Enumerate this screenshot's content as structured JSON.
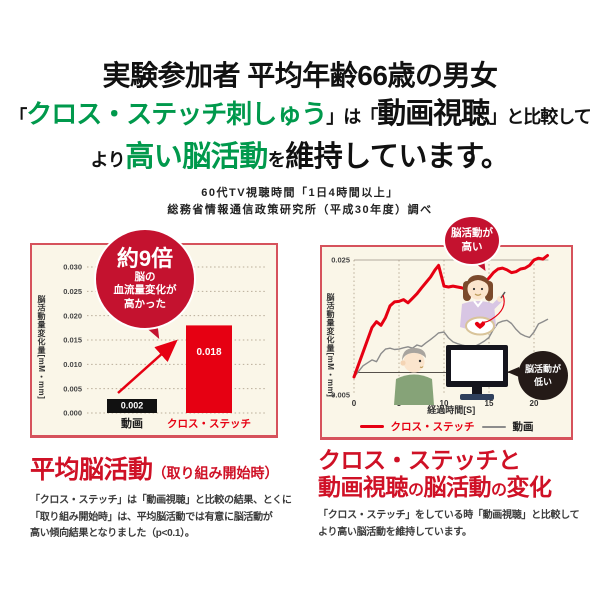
{
  "colors": {
    "bar_red": "#e60012",
    "bubble_red": "#c4122f",
    "text_red": "#cf1126",
    "green": "#00994c",
    "panel_border": "#d6525c",
    "panel_bg": "#faf6e8",
    "gray_line": "#8c8c8c",
    "black": "#111111",
    "bubble_dark": "#241a17"
  },
  "header": {
    "line1": "実験参加者 平均年齢66歳の男女",
    "line2_segments": [
      {
        "text": "「",
        "style": "mid"
      },
      {
        "text": "クロス・ステッチ刺しゅう",
        "style": "green"
      },
      {
        "text": "」は「",
        "style": "mid"
      },
      {
        "text": "動画視聴",
        "style": "big"
      },
      {
        "text": "」と比較して",
        "style": "mid"
      }
    ],
    "line3_segments": [
      {
        "text": "より",
        "style": "mid"
      },
      {
        "text": "高い脳活動",
        "style": "green-big"
      },
      {
        "text": "を",
        "style": "mid"
      },
      {
        "text": "維持しています。",
        "style": "big"
      }
    ],
    "source_line1": "60代TV視聴時間「1日4時間以上」",
    "source_line2": "総務省情報通信政策研究所（平成30年度）調べ"
  },
  "left_panel": {
    "bubble": {
      "big": "約9倍",
      "line1": "脳の",
      "line2": "血流量変化が",
      "line3": "高かった"
    }
  },
  "right_panel": {
    "bubble_high_line1": "脳活動が",
    "bubble_high_line2": "高い",
    "bubble_low_line1": "脳活動が",
    "bubble_low_line2": "低い"
  },
  "chart_data": [
    {
      "type": "bar",
      "title": "平均脳活動（取り組み開始時）",
      "categories": [
        "動画",
        "クロス・ステッチ"
      ],
      "values": [
        0.002,
        0.018
      ],
      "bar_colors": [
        "#111111",
        "#e60012"
      ],
      "ylabel": "脳活動量変化量[mM・mm]",
      "yticks": [
        0.0,
        0.005,
        0.01,
        0.015,
        0.02,
        0.025,
        0.03
      ],
      "ylim": [
        0,
        0.03
      ],
      "grid": "dotted",
      "annotation": "約9倍 脳の血流量変化が高かった"
    },
    {
      "type": "line",
      "title": "クロス・ステッチと動画視聴の脳活動の変化",
      "xlabel": "経過時間[S]",
      "ylabel": "脳活動量変化量[mM・mm]",
      "xticks": [
        0,
        5,
        10,
        15,
        20
      ],
      "ylim": [
        -0.005,
        0.025
      ],
      "ytick_labels": [
        "0.025",
        "-0.005"
      ],
      "grid": "dotted-vertical",
      "legend_position": "bottom",
      "x": [
        0,
        1,
        2,
        2.5,
        3,
        3.5,
        4,
        4.5,
        5,
        5.5,
        6,
        6.5,
        7,
        7.5,
        8,
        8.5,
        9,
        9.4,
        10,
        10.5,
        11,
        11.5,
        12,
        12.5,
        13,
        13.5,
        14,
        14.5,
        15,
        15.5,
        16,
        16.5,
        17,
        17.5,
        18,
        18.5,
        19,
        19.5,
        20,
        20.5,
        21,
        21.5
      ],
      "series": [
        {
          "name": "クロス・ステッチ",
          "color": "#e60012",
          "values": [
            -0.001,
            0.0045,
            0.01,
            0.0113,
            0.0105,
            0.0122,
            0.0148,
            0.0157,
            0.0158,
            0.0162,
            0.0155,
            0.0165,
            0.0175,
            0.0188,
            0.02,
            0.0212,
            0.0228,
            0.0238,
            0.0192,
            0.019,
            0.0192,
            0.019,
            0.0188,
            0.0185,
            0.0183,
            0.018,
            0.019,
            0.02,
            0.021,
            0.0222,
            0.023,
            0.0232,
            0.0228,
            0.0222,
            0.0224,
            0.023,
            0.0232,
            0.0238,
            0.025,
            0.0254,
            0.0252,
            0.026
          ]
        },
        {
          "name": "動画",
          "color": "#8c8c8c",
          "values": [
            -0.001,
            0.0015,
            0.0028,
            0.0024,
            0.0042,
            0.0052,
            0.0054,
            0.0051,
            0.0052,
            0.0055,
            0.0057,
            0.0054,
            0.0061,
            0.0058,
            0.0066,
            0.0073,
            0.0081,
            0.0088,
            0.009,
            0.0077,
            0.0068,
            0.0064,
            0.0061,
            0.0059,
            0.0057,
            0.0059,
            0.0064,
            0.007,
            0.0078,
            0.0096,
            0.011,
            0.0114,
            0.0116,
            0.0109,
            0.0096,
            0.0086,
            0.0081,
            0.0078,
            0.009,
            0.0108,
            0.0113,
            0.0118
          ]
        }
      ]
    }
  ],
  "bottom_left": {
    "title_main": "平均脳活動",
    "title_sub": "（取り組み開始時）",
    "body_lines": [
      "「クロス・ステッチ」は「動画視聴」と比較の結果、とくに",
      "「取り組み開始時」は、平均脳活動では有意に脳活動が",
      "高い傾向結果となりました（p<0.1）。"
    ]
  },
  "bottom_right": {
    "title_line1": "クロス・ステッチと",
    "title_line2_segments": [
      {
        "text": "動画視聴",
        "style": "t-big"
      },
      {
        "text": "の",
        "style": "t-small"
      },
      {
        "text": "脳活動",
        "style": "t-big"
      },
      {
        "text": "の",
        "style": "t-small"
      },
      {
        "text": "変化",
        "style": "t-big"
      }
    ],
    "body_lines": [
      "「クロス・ステッチ」をしている時「動画視聴」と比較して",
      "より高い脳活動を維持しています。"
    ]
  }
}
